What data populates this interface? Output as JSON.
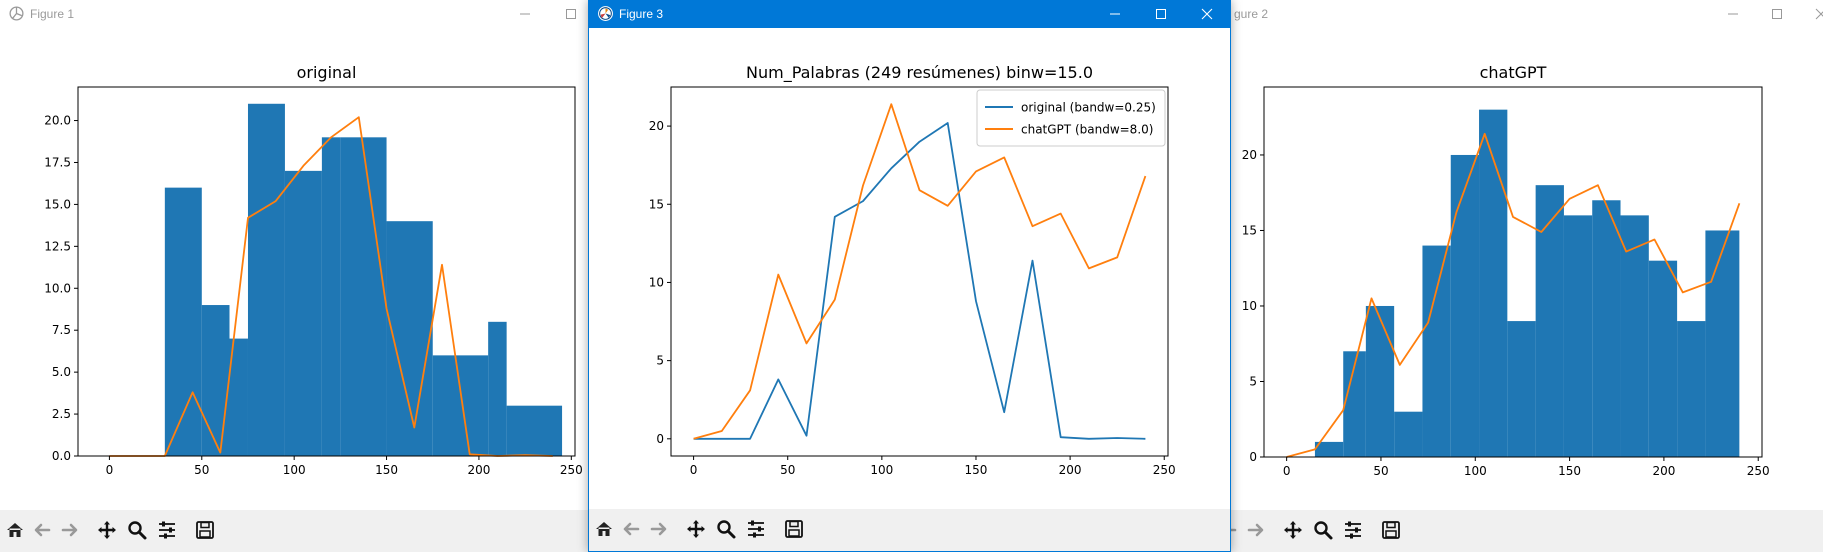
{
  "windows": {
    "fig1": {
      "title": "Figure 1"
    },
    "fig3": {
      "title": "Figure 3"
    },
    "fig2": {
      "title": "gure 2"
    }
  },
  "colors": {
    "hist": "#1f77b4",
    "line_orange": "#ff7f0e",
    "line_blue": "#1f77b4",
    "title_active": "#0078d7"
  },
  "toolbar_icons": [
    "home-icon",
    "back-arrow-icon",
    "forward-arrow-icon",
    "pan-icon",
    "zoom-icon",
    "configure-icon",
    "save-icon"
  ],
  "chart_data": [
    {
      "type": "bar",
      "title": "original",
      "xlim": [
        -17,
        252
      ],
      "ylim": [
        0,
        22
      ],
      "xticks": [
        0,
        50,
        100,
        150,
        200,
        250
      ],
      "yticks": [
        0.0,
        2.5,
        5.0,
        7.5,
        10.0,
        12.5,
        15.0,
        17.5,
        20.0
      ],
      "ytick_labels": [
        "0.0",
        "2.5",
        "5.0",
        "7.5",
        "10.0",
        "12.5",
        "15.0",
        "17.5",
        "20.0"
      ],
      "bins": [
        [
          30,
          50,
          16
        ],
        [
          50,
          65,
          9
        ],
        [
          65,
          75,
          7
        ],
        [
          75,
          95,
          21
        ],
        [
          95,
          115,
          17
        ],
        [
          115,
          125,
          19
        ],
        [
          125,
          150,
          19
        ],
        [
          150,
          175,
          14
        ],
        [
          175,
          205,
          6
        ],
        [
          205,
          215,
          8
        ],
        [
          215,
          245,
          3
        ]
      ],
      "series": [
        {
          "color": "#ff7f0e",
          "x": [
            0,
            15,
            30,
            45,
            60,
            75,
            90,
            105,
            120,
            135,
            150,
            165,
            180,
            195,
            210,
            225,
            240
          ],
          "y": [
            0,
            0,
            0,
            3.8,
            0.2,
            14.2,
            15.2,
            17.3,
            19.0,
            20.2,
            8.8,
            1.7,
            11.4,
            0.1,
            0.0,
            0.05,
            0.0
          ]
        }
      ]
    },
    {
      "type": "line",
      "title": "Num_Palabras (249 resúmenes) binw=15.0",
      "xlim": [
        -12,
        252
      ],
      "ylim": [
        -1.1,
        22.5
      ],
      "xticks": [
        0,
        50,
        100,
        150,
        200,
        250
      ],
      "yticks": [
        0,
        5,
        10,
        15,
        20
      ],
      "ytick_labels": [
        "0",
        "5",
        "10",
        "15",
        "20"
      ],
      "legend": {
        "position": "top-right"
      },
      "series": [
        {
          "name": "original (bandw=0.25)",
          "color": "#1f77b4",
          "x": [
            0,
            15,
            30,
            45,
            60,
            75,
            90,
            105,
            120,
            135,
            150,
            165,
            180,
            195,
            210,
            225,
            240
          ],
          "y": [
            0,
            0,
            0,
            3.8,
            0.2,
            14.2,
            15.2,
            17.3,
            19.0,
            20.2,
            8.8,
            1.7,
            11.4,
            0.1,
            0.0,
            0.05,
            0.0
          ]
        },
        {
          "name": "chatGPT (bandw=8.0)",
          "color": "#ff7f0e",
          "x": [
            0,
            15,
            30,
            45,
            60,
            75,
            90,
            105,
            120,
            135,
            150,
            165,
            180,
            195,
            210,
            225,
            240
          ],
          "y": [
            0,
            0.5,
            3.1,
            10.5,
            6.1,
            8.9,
            16.2,
            21.4,
            15.9,
            14.9,
            17.1,
            18.0,
            13.6,
            14.4,
            10.9,
            11.6,
            16.8
          ]
        }
      ]
    },
    {
      "type": "bar",
      "title": "chatGPT",
      "xlim": [
        -12,
        252
      ],
      "ylim": [
        0,
        24.5
      ],
      "xticks": [
        0,
        50,
        100,
        150,
        200,
        250
      ],
      "yticks": [
        0,
        5,
        10,
        15,
        20
      ],
      "ytick_labels": [
        "0",
        "5",
        "10",
        "15",
        "20"
      ],
      "bins": [
        [
          15,
          30,
          1
        ],
        [
          30,
          42,
          7
        ],
        [
          42,
          57,
          10
        ],
        [
          57,
          72,
          3
        ],
        [
          72,
          87,
          14
        ],
        [
          87,
          102,
          20
        ],
        [
          102,
          117,
          23
        ],
        [
          117,
          132,
          9
        ],
        [
          132,
          147,
          18
        ],
        [
          147,
          162,
          16
        ],
        [
          162,
          177,
          17
        ],
        [
          177,
          192,
          16
        ],
        [
          192,
          207,
          13
        ],
        [
          207,
          222,
          9
        ],
        [
          222,
          240,
          15
        ]
      ],
      "series": [
        {
          "color": "#ff7f0e",
          "x": [
            0,
            15,
            30,
            45,
            60,
            75,
            90,
            105,
            120,
            135,
            150,
            165,
            180,
            195,
            210,
            225,
            240
          ],
          "y": [
            0,
            0.5,
            3.1,
            10.5,
            6.1,
            8.9,
            16.2,
            21.4,
            15.9,
            14.9,
            17.1,
            18.0,
            13.6,
            14.4,
            10.9,
            11.6,
            16.8
          ]
        }
      ]
    }
  ]
}
